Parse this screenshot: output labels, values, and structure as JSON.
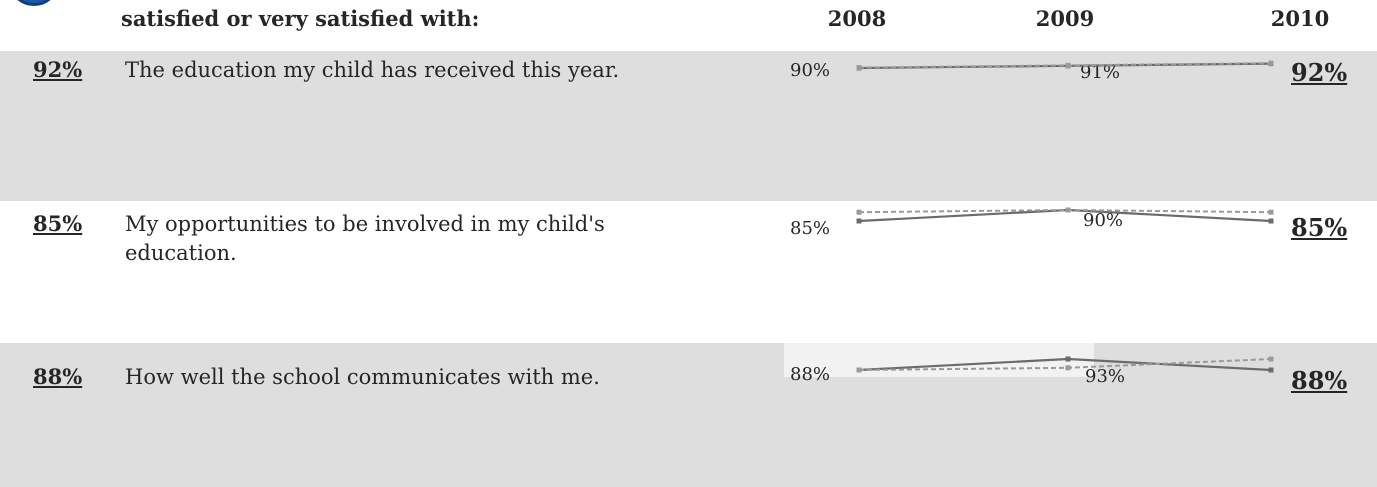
{
  "header": {
    "question": "satisfied or very satisfied with:",
    "years": [
      "2008",
      "2009",
      "2010"
    ]
  },
  "rows": [
    {
      "label": "The education my child has received this year.",
      "current": "92%",
      "values_label": {
        "y2008": "90%",
        "y2009": "91%",
        "y2010": "92%"
      }
    },
    {
      "label": "My opportunities to be involved in my child's education.",
      "current": "85%",
      "values_label": {
        "y2008": "85%",
        "y2009": "90%",
        "y2010": "85%"
      }
    },
    {
      "label": "How well the school communicates with me.",
      "current": "88%",
      "values_label": {
        "y2008": "88%",
        "y2009": "93%",
        "y2010": "88%"
      }
    }
  ],
  "colors": {
    "band": "#dedede",
    "school_line": "#6b6b6b",
    "comparison_line": "#9a9a9a",
    "badge": "#1f5aa8"
  },
  "chart_data": {
    "type": "line",
    "categories": [
      "2008",
      "2009",
      "2010"
    ],
    "rows": [
      {
        "label": "The education my child has received this year.",
        "series": [
          {
            "style": "solid",
            "values": [
              90,
              91,
              92
            ]
          },
          {
            "style": "dashed",
            "values": [
              90.2,
              91.2,
              92.2
            ]
          }
        ]
      },
      {
        "label": "My opportunities to be involved in my child's education.",
        "series": [
          {
            "style": "solid",
            "values": [
              85,
              90,
              85
            ]
          },
          {
            "style": "dashed",
            "values": [
              89,
              90,
              89
            ]
          }
        ]
      },
      {
        "label": "How well the school communicates with me.",
        "series": [
          {
            "style": "solid",
            "values": [
              88,
              93,
              88
            ]
          },
          {
            "style": "dashed",
            "values": [
              88,
              89,
              93
            ]
          }
        ]
      }
    ]
  }
}
